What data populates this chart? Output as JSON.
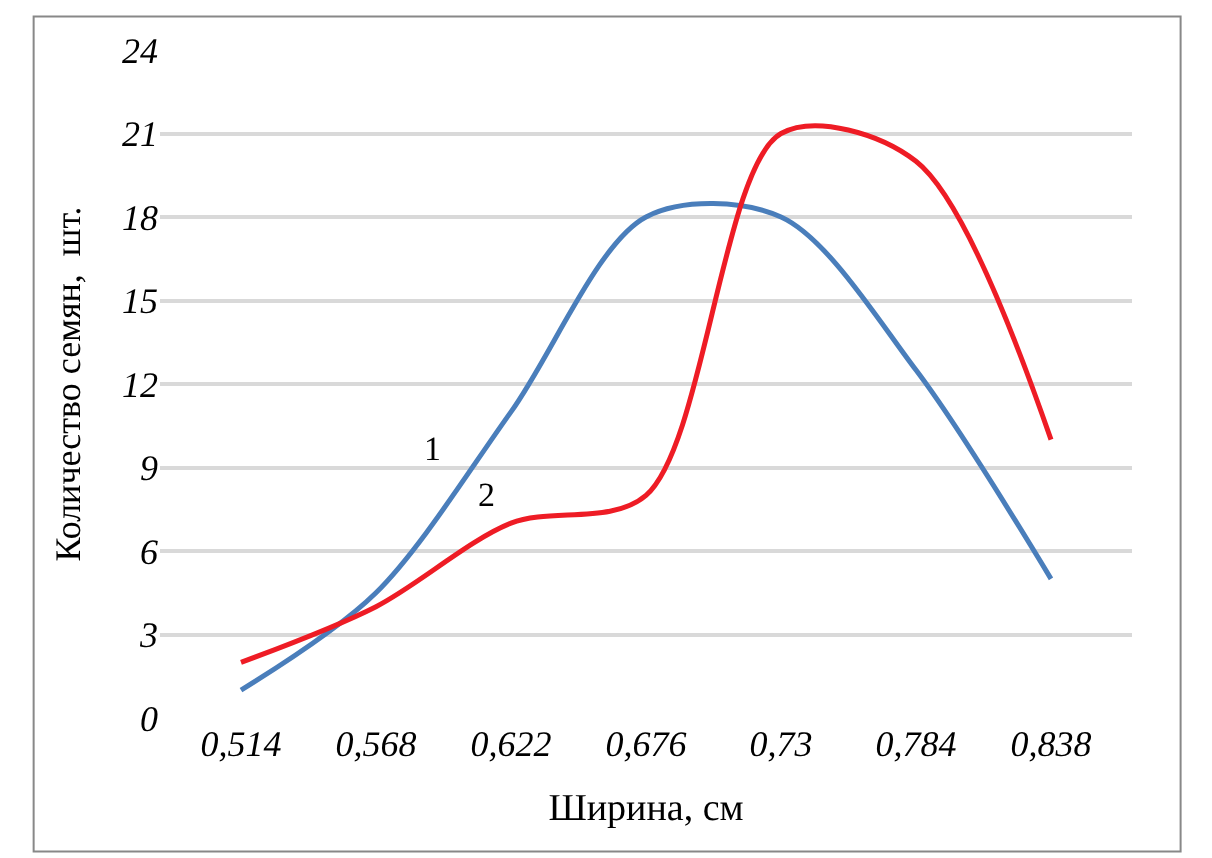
{
  "chart_data": {
    "type": "line",
    "xlabel": "Ширина, см",
    "ylabel": "Количество семян,  шт.",
    "categories": [
      "0,514",
      "0,568",
      "0,622",
      "0,676",
      "0,73",
      "0,784",
      "0,838"
    ],
    "series": [
      {
        "name": "1",
        "color": "#4a7ebb",
        "values": [
          1,
          4.5,
          11,
          18,
          18,
          12.5,
          5
        ]
      },
      {
        "name": "2",
        "color": "#ee1c25",
        "values": [
          2,
          4,
          7,
          8,
          21,
          20,
          10
        ]
      }
    ],
    "ylim": [
      0,
      24
    ],
    "yticks": [
      0,
      3,
      6,
      9,
      12,
      15,
      18,
      21,
      24
    ],
    "grid": "y",
    "legend": false,
    "marker": "none",
    "line_style": "solid"
  }
}
